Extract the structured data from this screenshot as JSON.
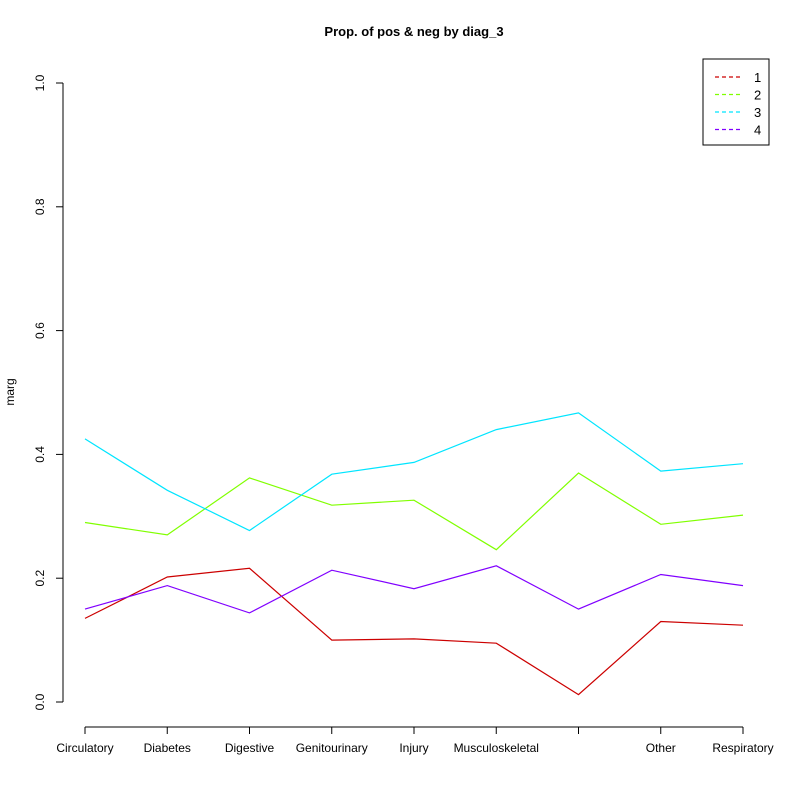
{
  "chart_data": {
    "type": "line",
    "title": "Prop. of pos & neg by diag_3",
    "xlabel": "",
    "ylabel": "marg",
    "ylim": [
      0,
      1
    ],
    "yticks": [
      "0.0",
      "0.2",
      "0.4",
      "0.6",
      "0.8",
      "1.0"
    ],
    "categories": [
      "Circulatory",
      "Diabetes",
      "Digestive",
      "Genitourinary",
      "Injury",
      "Musculoskeletal",
      "",
      "Other",
      "Respiratory"
    ],
    "legend_position": "top-right",
    "series": [
      {
        "name": "1",
        "color": "#cc0000",
        "values": [
          0.135,
          0.202,
          0.216,
          0.1,
          0.102,
          0.095,
          0.012,
          0.13,
          0.124
        ]
      },
      {
        "name": "2",
        "color": "#80ff00",
        "values": [
          0.29,
          0.27,
          0.362,
          0.318,
          0.326,
          0.246,
          0.37,
          0.287,
          0.302
        ]
      },
      {
        "name": "3",
        "color": "#00e5ff",
        "values": [
          0.425,
          0.342,
          0.277,
          0.368,
          0.387,
          0.44,
          0.467,
          0.373,
          0.385
        ]
      },
      {
        "name": "4",
        "color": "#8000ff",
        "values": [
          0.15,
          0.188,
          0.144,
          0.213,
          0.183,
          0.22,
          0.15,
          0.206,
          0.188
        ]
      }
    ]
  }
}
